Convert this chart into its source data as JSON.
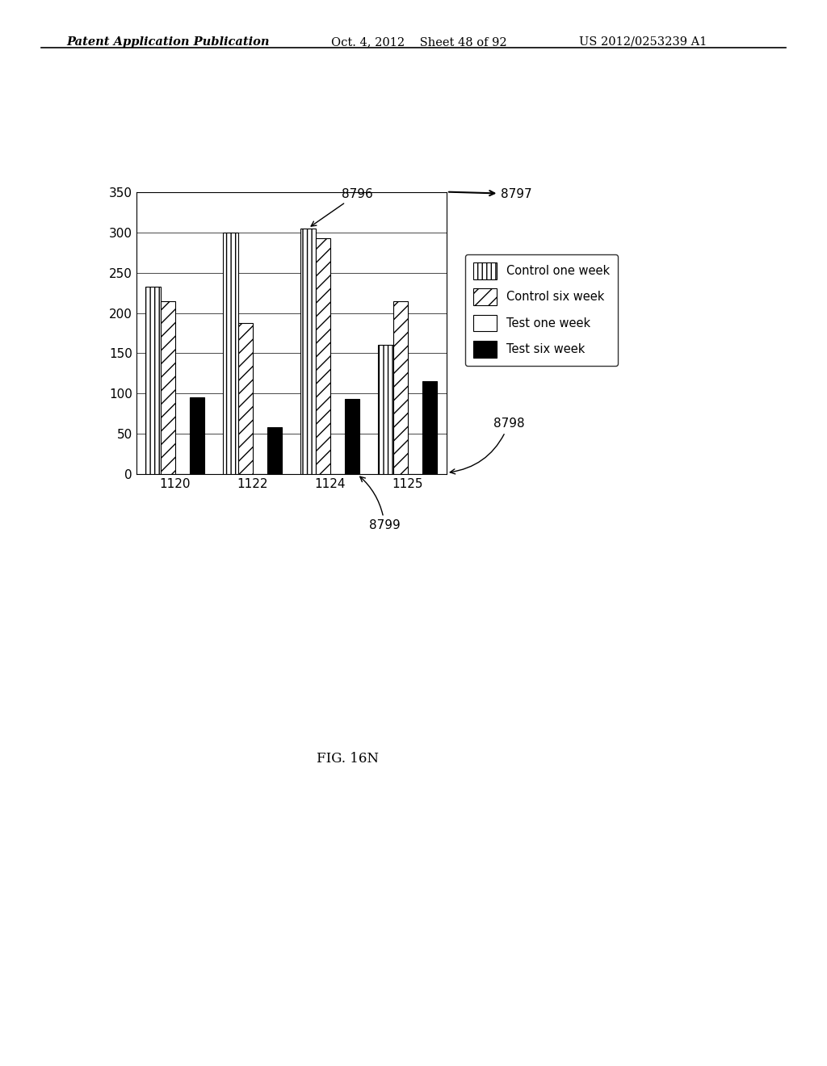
{
  "categories": [
    "1120",
    "1122",
    "1124",
    "1125"
  ],
  "control_one_week": [
    233,
    300,
    305,
    160
  ],
  "control_six_week": [
    215,
    188,
    293,
    215
  ],
  "test_one_week": [
    0,
    0,
    0,
    0
  ],
  "test_six_week": [
    95,
    58,
    93,
    115
  ],
  "ylim": [
    0,
    350
  ],
  "yticks": [
    0,
    50,
    100,
    150,
    200,
    250,
    300,
    350
  ],
  "bar_width": 0.19,
  "legend_labels": [
    "Control one week",
    "Control six week",
    "Test one week",
    "Test six week"
  ],
  "fig_label": "FIG. 16N",
  "header_left": "Patent Application Publication",
  "header_center": "Oct. 4, 2012    Sheet 48 of 92",
  "header_right": "US 2012/0253239 A1",
  "background_color": "#ffffff"
}
